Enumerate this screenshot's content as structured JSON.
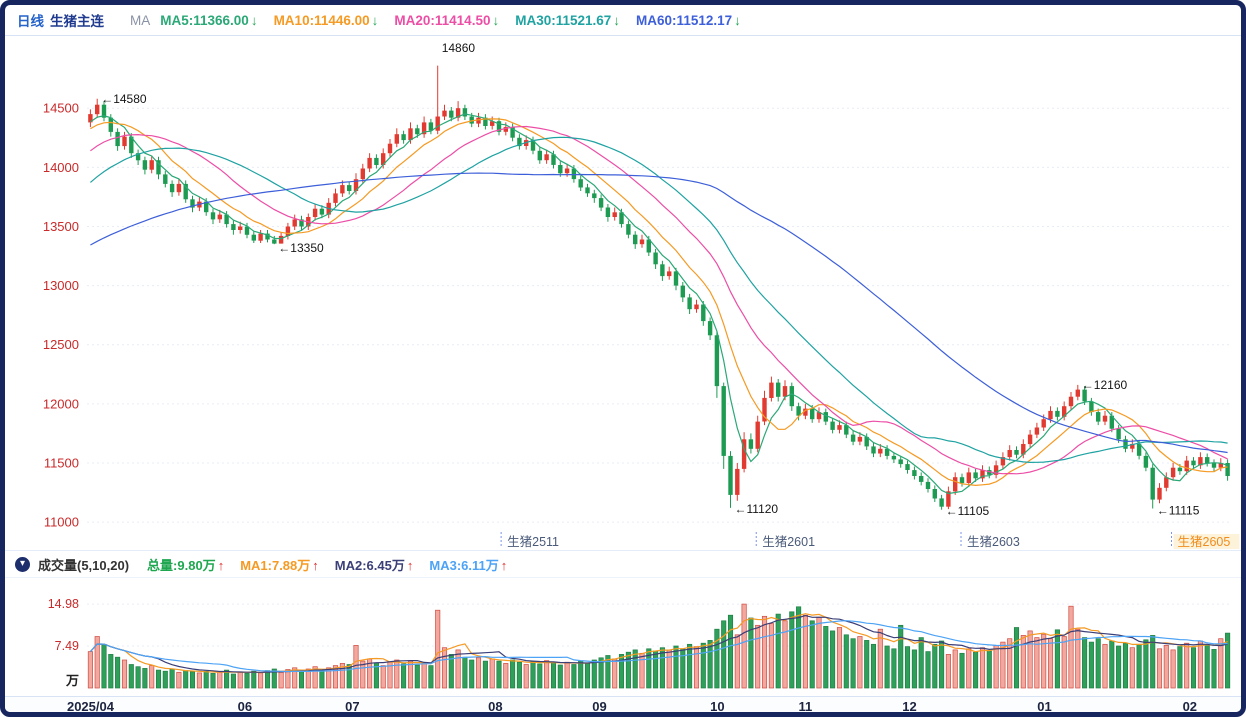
{
  "header": {
    "timeframe": "日线",
    "symbol": "生猪主连",
    "ma_prefix": "MA",
    "ma_items": [
      {
        "label": "MA5:11366.00",
        "arrow": "↓",
        "color": "#2aa876"
      },
      {
        "label": "MA10:11446.00",
        "arrow": "↓",
        "color": "#f59a23"
      },
      {
        "label": "MA20:11414.50",
        "arrow": "↓",
        "color": "#ec4ea6"
      },
      {
        "label": "MA30:11521.67",
        "arrow": "↓",
        "color": "#1fa2a2"
      },
      {
        "label": "MA60:11512.17",
        "arrow": "↓",
        "color": "#3d5fd9"
      }
    ]
  },
  "volume_legend": {
    "collapse_icon": "▾",
    "title": "成交量(5,10,20)",
    "items": [
      {
        "label": "总量:9.80万",
        "arrow": "↑",
        "color": "#1fa750"
      },
      {
        "label": "MA1:7.88万",
        "arrow": "↑",
        "color": "#f59a23"
      },
      {
        "label": "MA2:6.45万",
        "arrow": "↑",
        "color": "#3b3f78"
      },
      {
        "label": "MA3:6.11万",
        "arrow": "↑",
        "color": "#4da3f5"
      }
    ]
  },
  "colors": {
    "axis_label": "#c92a2a",
    "candle_up": "#e13a30",
    "candle_down": "#1e9b52",
    "vol_up_fill": "#f3a89f",
    "vol_up_stroke": "#cf4c41",
    "vol_down_fill": "#2fa05a",
    "vol_down_stroke": "#1e7f45",
    "grid": "#e7ecf6",
    "annotation": "#151515",
    "contract": "#4a5a7a",
    "contract_active": "#f08c1d",
    "month_label": "#1c2440"
  },
  "chart_data": {
    "type": "candlestick",
    "title": "生猪主连 日线",
    "ylabel": "价格",
    "y_ticks": [
      14500,
      14000,
      13500,
      13000,
      12500,
      12000,
      11500,
      11000
    ],
    "y_domain": [
      10950,
      15060
    ],
    "months": [
      {
        "label": "2025/04",
        "f": -0.0175,
        "align": "left"
      },
      {
        "label": "06",
        "f": 0.138
      },
      {
        "label": "07",
        "f": 0.232
      },
      {
        "label": "08",
        "f": 0.357
      },
      {
        "label": "09",
        "f": 0.448
      },
      {
        "label": "10",
        "f": 0.551
      },
      {
        "label": "11",
        "f": 0.628
      },
      {
        "label": "12",
        "f": 0.719
      },
      {
        "label": "01",
        "f": 0.837
      },
      {
        "label": "02",
        "f": 0.964
      }
    ],
    "annotations": [
      {
        "text": "←14580",
        "bar": 1,
        "value": 14580
      },
      {
        "text": "←13350",
        "bar": 27,
        "value": 13320
      },
      {
        "text": "14860",
        "bar": 51,
        "value": 15020
      },
      {
        "text": "←11120",
        "bar": 94,
        "value": 11110
      },
      {
        "text": "←12160",
        "bar": 145,
        "value": 12160
      },
      {
        "text": "←11105",
        "bar": 125,
        "value": 11095
      },
      {
        "text": "←11115",
        "bar": 156,
        "value": 11100
      }
    ],
    "contracts": [
      {
        "label": "生猪2511",
        "f": 0.362
      },
      {
        "label": "生猪2601",
        "f": 0.585
      },
      {
        "label": "生猪2603",
        "f": 0.764
      },
      {
        "label": "生猪2605",
        "f": 0.948,
        "active": true
      }
    ],
    "ma_periods": [
      5,
      10,
      20,
      30,
      60
    ],
    "ma_colors": [
      "#2aa876",
      "#f59a23",
      "#ec4ea6",
      "#1fa2a2",
      "#3d5fd9"
    ],
    "ma_seed": [
      12650,
      12680,
      12660,
      12700,
      12720,
      12690,
      12730,
      12710,
      12740,
      12760,
      12730,
      12770,
      12750,
      12780,
      12800,
      12770,
      12810,
      12790,
      12820,
      12850,
      12830,
      12870,
      12890,
      12860,
      12900,
      12930,
      12910,
      12950,
      12980,
      13000,
      13040,
      13080,
      13130,
      13180,
      13240,
      13300,
      13360,
      13420,
      13490,
      13560,
      13630,
      13700,
      13760,
      13820,
      13880,
      13940,
      13990,
      14040,
      14090,
      14130,
      14170,
      14210,
      14240,
      14270,
      14300,
      14320,
      14340,
      14360,
      14380,
      14400
    ],
    "volume": {
      "y_ticks": [
        14.98,
        7.49
      ],
      "unit": "万",
      "ma_periods": [
        5,
        10,
        20
      ],
      "ma_colors": [
        "#f59a23",
        "#3b3f78",
        "#4da3f5"
      ]
    },
    "candles": [
      [
        14380,
        14490,
        14340,
        14450,
        6.5
      ],
      [
        14450,
        14580,
        14420,
        14530,
        9.2
      ],
      [
        14530,
        14560,
        14390,
        14420,
        7.8
      ],
      [
        14420,
        14450,
        14260,
        14300,
        6.0
      ],
      [
        14300,
        14330,
        14140,
        14180,
        5.5
      ],
      [
        14180,
        14300,
        14150,
        14260,
        5.0
      ],
      [
        14260,
        14290,
        14080,
        14120,
        4.2
      ],
      [
        14120,
        14150,
        14020,
        14060,
        3.8
      ],
      [
        14060,
        14090,
        13940,
        13980,
        3.5
      ],
      [
        13980,
        14100,
        13950,
        14060,
        4.0
      ],
      [
        14060,
        14090,
        13900,
        13940,
        3.2
      ],
      [
        13940,
        13970,
        13830,
        13860,
        3.0
      ],
      [
        13860,
        13890,
        13750,
        13790,
        3.4
      ],
      [
        13790,
        13900,
        13760,
        13860,
        2.8
      ],
      [
        13860,
        13890,
        13700,
        13730,
        3.1
      ],
      [
        13730,
        13760,
        13620,
        13660,
        2.9
      ],
      [
        13660,
        13750,
        13630,
        13710,
        2.7
      ],
      [
        13710,
        13740,
        13590,
        13620,
        3.0
      ],
      [
        13620,
        13650,
        13520,
        13560,
        2.6
      ],
      [
        13560,
        13640,
        13530,
        13600,
        2.8
      ],
      [
        13600,
        13630,
        13490,
        13520,
        3.2
      ],
      [
        13520,
        13550,
        13430,
        13470,
        2.5
      ],
      [
        13470,
        13540,
        13440,
        13500,
        2.9
      ],
      [
        13500,
        13530,
        13400,
        13430,
        2.6
      ],
      [
        13430,
        13460,
        13360,
        13380,
        3.0
      ],
      [
        13380,
        13470,
        13360,
        13440,
        2.7
      ],
      [
        13440,
        13470,
        13365,
        13390,
        3.1
      ],
      [
        13390,
        13420,
        13350,
        13355,
        3.4
      ],
      [
        13355,
        13450,
        13355,
        13420,
        2.8
      ],
      [
        13420,
        13530,
        13390,
        13500,
        3.3
      ],
      [
        13500,
        13600,
        13470,
        13560,
        3.6
      ],
      [
        13560,
        13590,
        13470,
        13500,
        2.9
      ],
      [
        13500,
        13610,
        13470,
        13580,
        3.4
      ],
      [
        13580,
        13690,
        13550,
        13650,
        3.8
      ],
      [
        13650,
        13680,
        13570,
        13600,
        3.1
      ],
      [
        13600,
        13740,
        13570,
        13700,
        3.6
      ],
      [
        13700,
        13820,
        13670,
        13780,
        4.0
      ],
      [
        13780,
        13890,
        13750,
        13850,
        4.4
      ],
      [
        13850,
        13880,
        13770,
        13800,
        4.2
      ],
      [
        13800,
        13950,
        13770,
        13900,
        7.6
      ],
      [
        13900,
        14030,
        13870,
        13990,
        4.8
      ],
      [
        13990,
        14120,
        13960,
        14080,
        5.2
      ],
      [
        14080,
        14110,
        13990,
        14020,
        4.5
      ],
      [
        14020,
        14160,
        13990,
        14120,
        4.0
      ],
      [
        14120,
        14240,
        14090,
        14200,
        4.6
      ],
      [
        14200,
        14330,
        14170,
        14280,
        5.0
      ],
      [
        14280,
        14310,
        14200,
        14230,
        4.3
      ],
      [
        14230,
        14380,
        14200,
        14330,
        4.8
      ],
      [
        14330,
        14360,
        14250,
        14280,
        4.1
      ],
      [
        14280,
        14430,
        14250,
        14380,
        4.5
      ],
      [
        14380,
        14410,
        14280,
        14310,
        4.0
      ],
      [
        14310,
        14860,
        14280,
        14430,
        13.9
      ],
      [
        14430,
        14530,
        14400,
        14480,
        7.2
      ],
      [
        14480,
        14510,
        14390,
        14420,
        6.0
      ],
      [
        14420,
        14560,
        14390,
        14500,
        6.8
      ],
      [
        14500,
        14530,
        14400,
        14430,
        5.5
      ],
      [
        14430,
        14460,
        14340,
        14370,
        5.0
      ],
      [
        14370,
        14460,
        14340,
        14420,
        5.4
      ],
      [
        14420,
        14450,
        14320,
        14350,
        4.8
      ],
      [
        14350,
        14430,
        14320,
        14390,
        5.2
      ],
      [
        14390,
        14420,
        14270,
        14300,
        4.8
      ],
      [
        14300,
        14380,
        14270,
        14340,
        4.4
      ],
      [
        14340,
        14370,
        14220,
        14250,
        5.0
      ],
      [
        14250,
        14280,
        14150,
        14180,
        4.6
      ],
      [
        14180,
        14270,
        14150,
        14230,
        4.2
      ],
      [
        14230,
        14260,
        14110,
        14140,
        4.7
      ],
      [
        14140,
        14170,
        14030,
        14060,
        4.3
      ],
      [
        14060,
        14150,
        14030,
        14110,
        4.9
      ],
      [
        14110,
        14140,
        13990,
        14020,
        4.5
      ],
      [
        14020,
        14050,
        13920,
        13950,
        4.1
      ],
      [
        13950,
        14030,
        13920,
        13990,
        4.6
      ],
      [
        13990,
        14020,
        13870,
        13900,
        4.2
      ],
      [
        13900,
        13930,
        13800,
        13830,
        4.8
      ],
      [
        13830,
        13860,
        13750,
        13780,
        4.4
      ],
      [
        13780,
        13810,
        13700,
        13740,
        5.0
      ],
      [
        13740,
        13770,
        13630,
        13660,
        5.4
      ],
      [
        13660,
        13690,
        13540,
        13580,
        5.8
      ],
      [
        13580,
        13660,
        13550,
        13620,
        5.2
      ],
      [
        13620,
        13650,
        13490,
        13520,
        6.0
      ],
      [
        13520,
        13550,
        13400,
        13430,
        6.4
      ],
      [
        13430,
        13460,
        13310,
        13350,
        6.8
      ],
      [
        13350,
        13430,
        13320,
        13390,
        6.2
      ],
      [
        13390,
        13420,
        13250,
        13280,
        7.0
      ],
      [
        13280,
        13310,
        13140,
        13180,
        6.6
      ],
      [
        13180,
        13210,
        13040,
        13080,
        7.2
      ],
      [
        13080,
        13160,
        13050,
        13120,
        6.8
      ],
      [
        13120,
        13150,
        12960,
        13000,
        7.5
      ],
      [
        13000,
        13030,
        12860,
        12900,
        7.0
      ],
      [
        12900,
        12930,
        12760,
        12800,
        7.8
      ],
      [
        12800,
        12880,
        12770,
        12840,
        7.4
      ],
      [
        12840,
        12870,
        12660,
        12700,
        8.0
      ],
      [
        12700,
        12730,
        12540,
        12580,
        8.5
      ],
      [
        12580,
        12610,
        12050,
        12150,
        10.5
      ],
      [
        12150,
        12180,
        11450,
        11560,
        12.0
      ],
      [
        11560,
        11600,
        11120,
        11230,
        13.0
      ],
      [
        11230,
        11500,
        11180,
        11450,
        9.5
      ],
      [
        11450,
        11760,
        11420,
        11700,
        14.98
      ],
      [
        11700,
        11750,
        11580,
        11620,
        12.5
      ],
      [
        11620,
        11900,
        11590,
        11850,
        11.2
      ],
      [
        11850,
        12110,
        11820,
        12050,
        12.8
      ],
      [
        12050,
        12230,
        12020,
        12180,
        11.5
      ],
      [
        12180,
        12210,
        12020,
        12060,
        13.2
      ],
      [
        12060,
        12200,
        12030,
        12150,
        12.0
      ],
      [
        12150,
        12180,
        11940,
        11980,
        13.6
      ],
      [
        11980,
        12010,
        11860,
        11900,
        14.5
      ],
      [
        11900,
        12000,
        11870,
        11960,
        13.0
      ],
      [
        11960,
        11990,
        11840,
        11870,
        12.0
      ],
      [
        11870,
        11970,
        11840,
        11930,
        12.6
      ],
      [
        11930,
        11960,
        11820,
        11850,
        11.0
      ],
      [
        11850,
        11880,
        11750,
        11780,
        10.2
      ],
      [
        11780,
        11860,
        11750,
        11820,
        10.8
      ],
      [
        11820,
        11850,
        11710,
        11740,
        9.5
      ],
      [
        11740,
        11770,
        11650,
        11680,
        8.8
      ],
      [
        11680,
        11760,
        11650,
        11720,
        9.2
      ],
      [
        11720,
        11750,
        11610,
        11640,
        8.5
      ],
      [
        11640,
        11670,
        11550,
        11580,
        7.8
      ],
      [
        11580,
        11660,
        11550,
        11620,
        10.5
      ],
      [
        11620,
        11650,
        11530,
        11560,
        7.5
      ],
      [
        11560,
        11590,
        11500,
        11530,
        7.0
      ],
      [
        11530,
        11560,
        11460,
        11490,
        11.2
      ],
      [
        11490,
        11520,
        11410,
        11440,
        7.4
      ],
      [
        11440,
        11470,
        11360,
        11390,
        6.8
      ],
      [
        11390,
        11420,
        11310,
        11340,
        9.0
      ],
      [
        11340,
        11370,
        11250,
        11280,
        6.5
      ],
      [
        11280,
        11310,
        11170,
        11200,
        7.8
      ],
      [
        11200,
        11230,
        11105,
        11130,
        8.4
      ],
      [
        11130,
        11300,
        11110,
        11260,
        6.0
      ],
      [
        11260,
        11420,
        11230,
        11380,
        6.8
      ],
      [
        11380,
        11410,
        11300,
        11330,
        6.2
      ],
      [
        11330,
        11460,
        11300,
        11420,
        7.0
      ],
      [
        11420,
        11450,
        11340,
        11370,
        6.4
      ],
      [
        11370,
        11480,
        11340,
        11440,
        7.2
      ],
      [
        11440,
        11470,
        11370,
        11400,
        6.6
      ],
      [
        11400,
        11520,
        11370,
        11480,
        7.6
      ],
      [
        11480,
        11590,
        11450,
        11550,
        8.2
      ],
      [
        11550,
        11650,
        11520,
        11610,
        8.8
      ],
      [
        11610,
        11640,
        11540,
        11570,
        10.8
      ],
      [
        11570,
        11700,
        11540,
        11660,
        9.4
      ],
      [
        11660,
        11780,
        11630,
        11740,
        10.2
      ],
      [
        11740,
        11840,
        11710,
        11800,
        9.0
      ],
      [
        11800,
        11910,
        11770,
        11870,
        9.6
      ],
      [
        11870,
        11980,
        11840,
        11940,
        8.8
      ],
      [
        11940,
        11970,
        11860,
        11890,
        10.4
      ],
      [
        11890,
        12020,
        11860,
        11980,
        9.2
      ],
      [
        11980,
        12100,
        11950,
        12060,
        14.6
      ],
      [
        12060,
        12160,
        12030,
        12120,
        10.5
      ],
      [
        12120,
        12150,
        11990,
        12020,
        9.0
      ],
      [
        12020,
        12050,
        11900,
        11930,
        8.2
      ],
      [
        11930,
        11960,
        11820,
        11850,
        8.8
      ],
      [
        11850,
        11940,
        11820,
        11900,
        7.8
      ],
      [
        11900,
        11930,
        11760,
        11790,
        8.4
      ],
      [
        11790,
        11820,
        11670,
        11700,
        7.5
      ],
      [
        11700,
        11730,
        11590,
        11620,
        8.0
      ],
      [
        11620,
        11700,
        11590,
        11660,
        7.2
      ],
      [
        11660,
        11690,
        11530,
        11560,
        7.8
      ],
      [
        11560,
        11590,
        11430,
        11460,
        8.6
      ],
      [
        11460,
        11490,
        11115,
        11190,
        9.4
      ],
      [
        11190,
        11330,
        11160,
        11290,
        7.0
      ],
      [
        11290,
        11420,
        11260,
        11380,
        7.6
      ],
      [
        11380,
        11500,
        11350,
        11460,
        6.8
      ],
      [
        11460,
        11490,
        11400,
        11430,
        7.4
      ],
      [
        11430,
        11560,
        11400,
        11520,
        8.0
      ],
      [
        11520,
        11550,
        11450,
        11480,
        7.2
      ],
      [
        11480,
        11590,
        11450,
        11550,
        8.4
      ],
      [
        11550,
        11580,
        11470,
        11500,
        7.6
      ],
      [
        11500,
        11530,
        11430,
        11460,
        6.9
      ],
      [
        11460,
        11540,
        11430,
        11500,
        8.8
      ],
      [
        11500,
        11530,
        11350,
        11390,
        9.8
      ]
    ]
  }
}
